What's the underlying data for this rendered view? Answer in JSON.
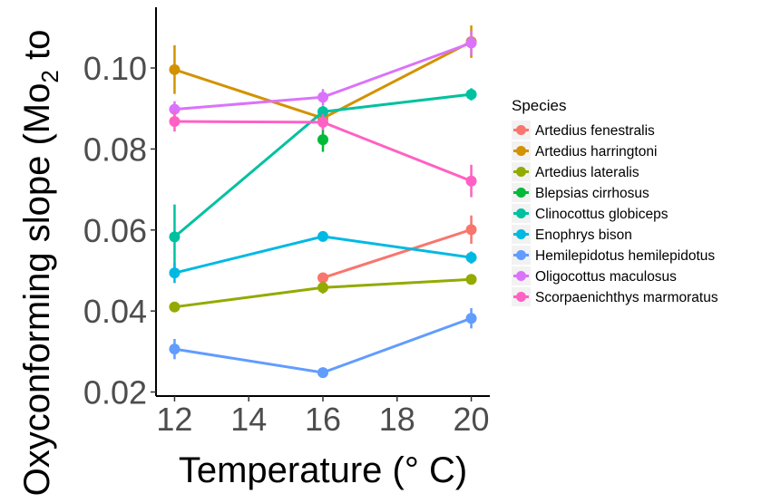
{
  "chart_data": {
    "type": "line",
    "title": "",
    "xlabel": "Temperature (° C)",
    "ylabel_main": "Oxyconforming slope (Mo",
    "ylabel_sub": "2",
    "ylabel_tail": " to",
    "xlim": [
      11.5,
      20.5
    ],
    "ylim": [
      0.019,
      0.115
    ],
    "xticks": [
      12,
      14,
      16,
      18,
      20
    ],
    "xtick_labels": [
      "12",
      "14",
      "16",
      "18",
      "20"
    ],
    "yticks": [
      0.02,
      0.04,
      0.06,
      0.08,
      0.1
    ],
    "ytick_labels": [
      "0.02",
      "0.04",
      "0.06",
      "0.08",
      "0.10"
    ],
    "grid": false,
    "legend_position": "right",
    "legend_title": "Species",
    "series": [
      {
        "name": "Artedius fenestralis",
        "color": "#F8766D",
        "x": [
          16,
          20
        ],
        "y": [
          0.0482,
          0.0601
        ],
        "err": [
          0.001,
          0.0035
        ]
      },
      {
        "name": "Artedius harringtoni",
        "color": "#D39200",
        "x": [
          12,
          16,
          20
        ],
        "y": [
          0.0996,
          0.0876,
          0.1065
        ],
        "err": [
          0.006,
          0.0015,
          0.004
        ]
      },
      {
        "name": "Artedius lateralis",
        "color": "#93AA00",
        "x": [
          12,
          16,
          20
        ],
        "y": [
          0.041,
          0.0458,
          0.0478
        ],
        "err": [
          0.0006,
          0.0015,
          0.0008
        ]
      },
      {
        "name": "Blepsias cirrhosus",
        "color": "#00BA38",
        "x": [
          16
        ],
        "y": [
          0.0823
        ],
        "err": [
          0.003
        ]
      },
      {
        "name": "Clinocottus globiceps",
        "color": "#00C19F",
        "x": [
          12,
          16,
          20
        ],
        "y": [
          0.0583,
          0.0892,
          0.0935
        ],
        "err": [
          0.008,
          0.0015,
          0.0015
        ]
      },
      {
        "name": "Enophrys bison",
        "color": "#00B9E3",
        "x": [
          12,
          16,
          20
        ],
        "y": [
          0.0494,
          0.0584,
          0.0532
        ],
        "err": [
          0.0025,
          0.0012,
          0.0015
        ]
      },
      {
        "name": "Hemilepidotus hemilepidotus",
        "color": "#619CFF",
        "x": [
          12,
          16,
          20
        ],
        "y": [
          0.0306,
          0.0248,
          0.0382
        ],
        "err": [
          0.0025,
          0.0006,
          0.0025
        ]
      },
      {
        "name": "Oligocottus maculosus",
        "color": "#DB72FB",
        "x": [
          12,
          16,
          20
        ],
        "y": [
          0.0898,
          0.0928,
          0.1062
        ],
        "err": [
          0.002,
          0.002,
          0.003
        ]
      },
      {
        "name": "Scorpaenichthys marmoratus",
        "color": "#FF61C3",
        "x": [
          12,
          16,
          20
        ],
        "y": [
          0.0868,
          0.0866,
          0.0721
        ],
        "err": [
          0.0025,
          0.002,
          0.004
        ]
      }
    ]
  }
}
